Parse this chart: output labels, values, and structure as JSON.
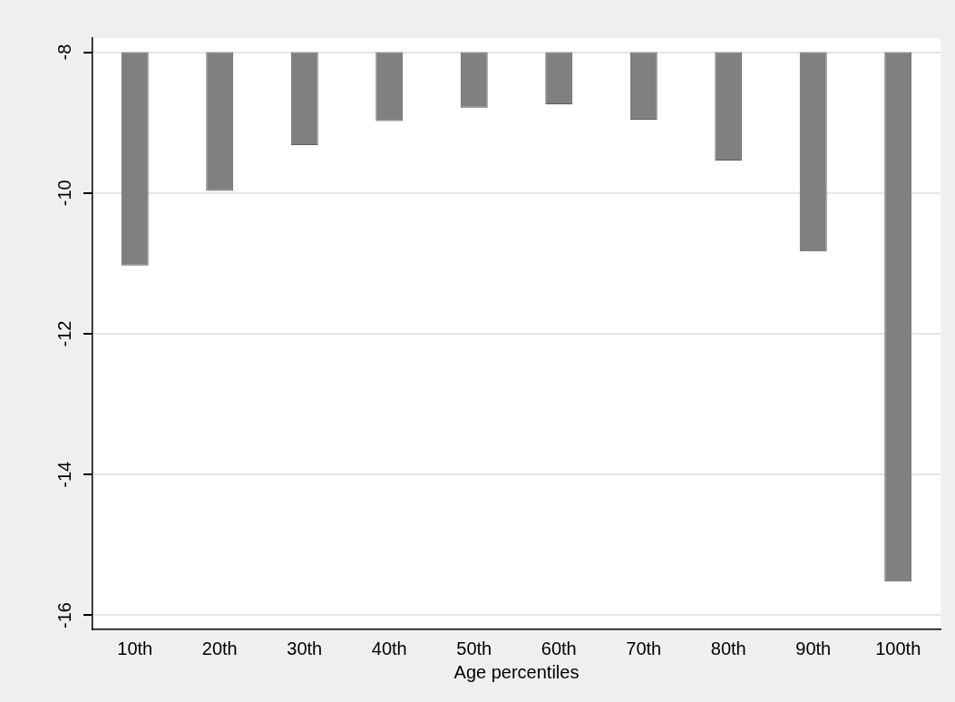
{
  "chart_data": {
    "type": "bar",
    "categories": [
      "10th",
      "20th",
      "30th",
      "40th",
      "50th",
      "60th",
      "70th",
      "80th",
      "90th",
      "100th"
    ],
    "base": [
      -8,
      -8,
      -8,
      -8,
      -8,
      -8,
      -8,
      -8,
      -8,
      -8
    ],
    "values": [
      -3.03,
      -1.97,
      -1.32,
      -0.98,
      -0.79,
      -0.74,
      -0.96,
      -1.54,
      -2.83,
      -7.52
    ],
    "color": "#808080",
    "xlabel": "Age percentiles",
    "ylim": [
      -16.2,
      -7.8
    ],
    "yticks": [
      -16,
      -14,
      -12,
      -10,
      -8
    ],
    "grid": "y"
  }
}
